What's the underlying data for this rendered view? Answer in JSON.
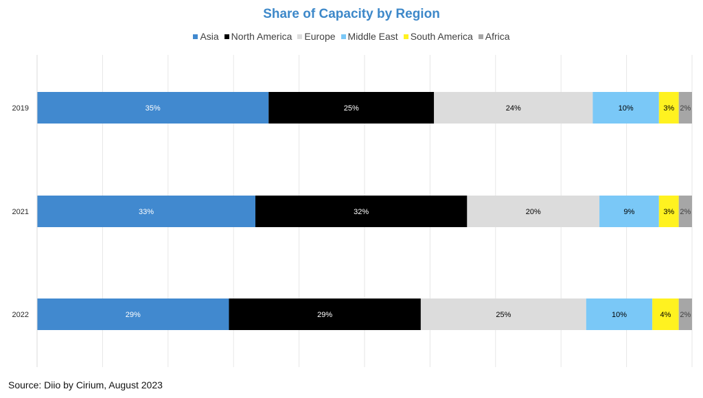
{
  "chart_data": {
    "type": "bar",
    "orientation": "horizontal",
    "stacked": true,
    "title": "Share of Capacity by Region",
    "categories": [
      "2019",
      "2021",
      "2022"
    ],
    "series": [
      {
        "name": "Asia",
        "color": "#4189cf",
        "label_color": "#ffffff",
        "values": [
          35,
          33,
          29
        ],
        "labels": [
          "35%",
          "33%",
          "29%"
        ]
      },
      {
        "name": "North America",
        "color": "#000000",
        "label_color": "#ffffff",
        "values": [
          25,
          32,
          29
        ],
        "labels": [
          "25%",
          "32%",
          "29%"
        ]
      },
      {
        "name": "Europe",
        "color": "#dcdcdc",
        "label_color": "#000000",
        "values": [
          24,
          20,
          25
        ],
        "labels": [
          "24%",
          "20%",
          "25%"
        ]
      },
      {
        "name": "Middle East",
        "color": "#7ac8f7",
        "label_color": "#000000",
        "values": [
          10,
          9,
          10
        ],
        "labels": [
          "10%",
          "9%",
          "10%"
        ]
      },
      {
        "name": "South America",
        "color": "#fff220",
        "label_color": "#000000",
        "values": [
          3,
          3,
          4
        ],
        "labels": [
          "3%",
          "3%",
          "4%"
        ]
      },
      {
        "name": "Africa",
        "color": "#a6a6a6",
        "label_color": "#404040",
        "values": [
          2,
          2,
          2
        ],
        "labels": [
          "2%",
          "2%",
          "2%"
        ]
      }
    ],
    "xlim": [
      0,
      100
    ],
    "grid": true,
    "legend_position": "top"
  },
  "source": "Source: Diio by Cirium, August 2023"
}
